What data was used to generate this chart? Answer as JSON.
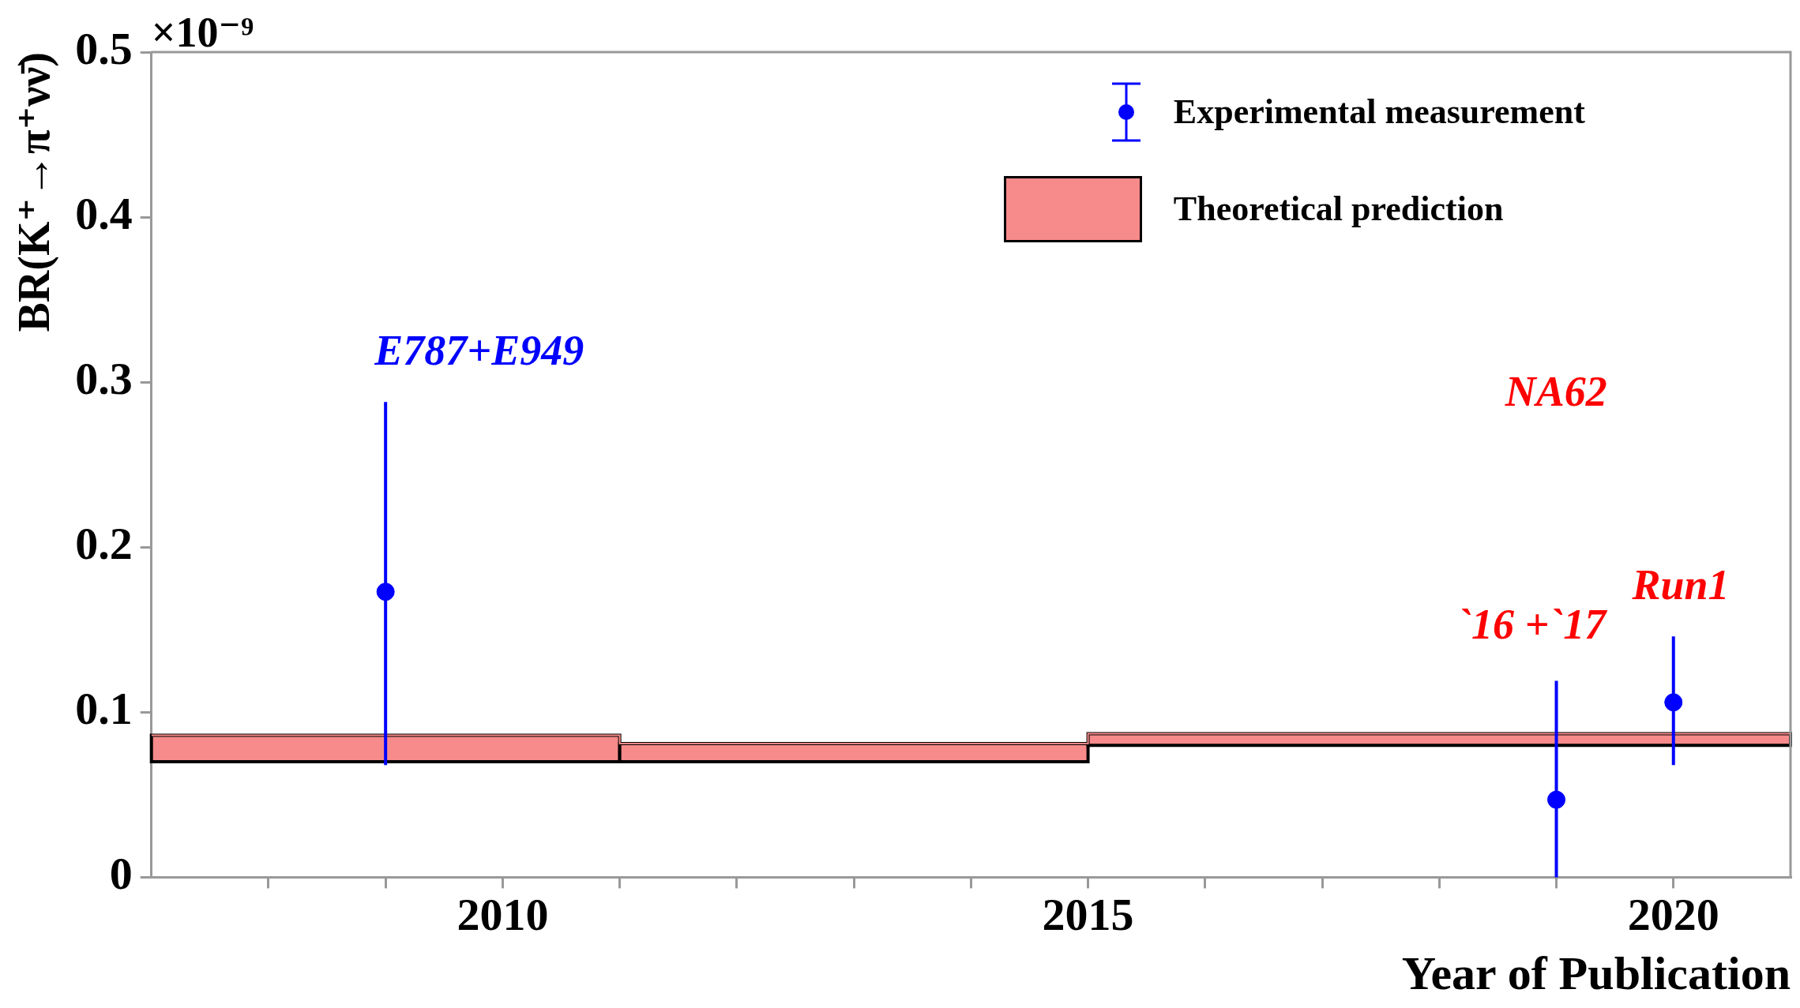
{
  "chart_data": {
    "type": "scatter",
    "xlabel": "Year of Publication",
    "ylabel": "BR(K⁺→π⁺νν̄)",
    "xlim": [
      2007,
      2021
    ],
    "xticks": [
      {
        "value": 2008,
        "label": null
      },
      {
        "value": 2009,
        "label": null
      },
      2010,
      {
        "value": 2011,
        "label": null
      },
      {
        "value": 2012,
        "label": null
      },
      {
        "value": 2013,
        "label": null
      },
      {
        "value": 2014,
        "label": null
      },
      2015,
      {
        "value": 2016,
        "label": null
      },
      {
        "value": 2017,
        "label": null
      },
      {
        "value": 2018,
        "label": null
      },
      {
        "value": 2019,
        "label": null
      },
      2020
    ],
    "ylim": [
      0,
      0.5
    ],
    "yticks": [
      0,
      0.1,
      0.2,
      0.3,
      0.4,
      0.5
    ],
    "grid": false,
    "legend": "top right",
    "series": [
      {
        "name": "Experimental measurement",
        "type": "scatter",
        "marker": "circle",
        "color": "#0000ff",
        "x": [
          2009,
          2019,
          2020
        ],
        "values": [
          0.173,
          0.047,
          0.106
        ],
        "errors": [
          [
            0.068,
            0.288
          ],
          [
            0,
            0.119
          ],
          [
            0.068,
            0.146
          ]
        ]
      },
      {
        "name": "Theoretical prediction",
        "type": "step",
        "color": "#f78a8a",
        "x": [
          2007,
          2011,
          2015,
          2021
        ],
        "values": [
          0.086,
          0.081,
          0.087,
          0.087
        ],
        "lower": [
          0.07,
          0.07,
          0.08,
          0.08
        ],
        "upper": [
          0.086,
          0.081,
          0.087,
          0.087
        ]
      }
    ],
    "annotations": [
      "×10⁻⁹",
      "E787+E949",
      "NA62",
      "`16 +`17",
      "Run1"
    ]
  }
}
